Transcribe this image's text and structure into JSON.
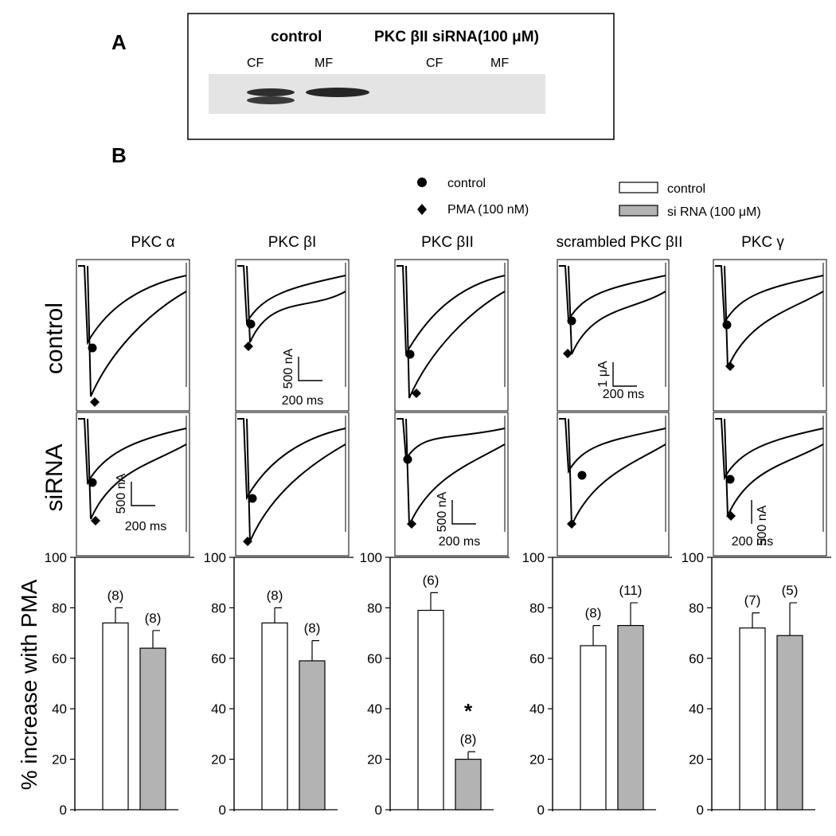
{
  "panel_a": {
    "label": "A",
    "groups": [
      "control",
      "PKC βII siRNA(100 μM)"
    ],
    "lanes": [
      "CF",
      "MF",
      "CF",
      "MF"
    ]
  },
  "panel_b": {
    "label": "B",
    "trace_legend": [
      {
        "marker": "circle",
        "text": "control"
      },
      {
        "marker": "diamond",
        "text": "PMA (100 nM)"
      }
    ],
    "bar_legend": [
      {
        "fill": "#ffffff",
        "text": "control"
      },
      {
        "fill": "#b3b3b3",
        "text": "si RNA (100 μM)"
      }
    ],
    "row_labels": [
      "control",
      "siRNA"
    ],
    "scale_bars": [
      {
        "amplitude": "500 nA",
        "time": "200 ms"
      },
      {
        "amplitude": "500 nA",
        "time": "200 ms"
      },
      {
        "amplitude": "500 nA",
        "time": "200 ms"
      },
      {
        "amplitude": "1 μA",
        "time": "200 ms"
      },
      {
        "amplitude": "500 nA",
        "time": "200 ms"
      }
    ]
  },
  "colors": {
    "control_bar": "#ffffff",
    "sirna_bar": "#b3b3b3",
    "ink": "#000000"
  },
  "chart_data": {
    "type": "bar",
    "ylabel": "% increase with PMA",
    "ylim": [
      0,
      100
    ],
    "yticks": [
      0,
      20,
      40,
      60,
      80,
      100
    ],
    "series_names": [
      "control",
      "si RNA (100 μM)"
    ],
    "panels": [
      {
        "title": "PKC α",
        "values": [
          74,
          64
        ],
        "errors": [
          6,
          7
        ],
        "n": [
          "(8)",
          "(8)"
        ],
        "significance": ""
      },
      {
        "title": "PKC βI",
        "values": [
          74,
          59
        ],
        "errors": [
          6,
          8
        ],
        "n": [
          "(8)",
          "(8)"
        ],
        "significance": ""
      },
      {
        "title": "PKC βII",
        "values": [
          79,
          20
        ],
        "errors": [
          7,
          3
        ],
        "n": [
          "(6)",
          "(8)"
        ],
        "significance": "*"
      },
      {
        "title": "scrambled PKC βII",
        "values": [
          65,
          73
        ],
        "errors": [
          8,
          9
        ],
        "n": [
          "(8)",
          "(11)"
        ],
        "significance": ""
      },
      {
        "title": "PKC γ",
        "values": [
          72,
          69
        ],
        "errors": [
          6,
          13
        ],
        "n": [
          "(7)",
          "(5)"
        ],
        "significance": ""
      }
    ]
  }
}
